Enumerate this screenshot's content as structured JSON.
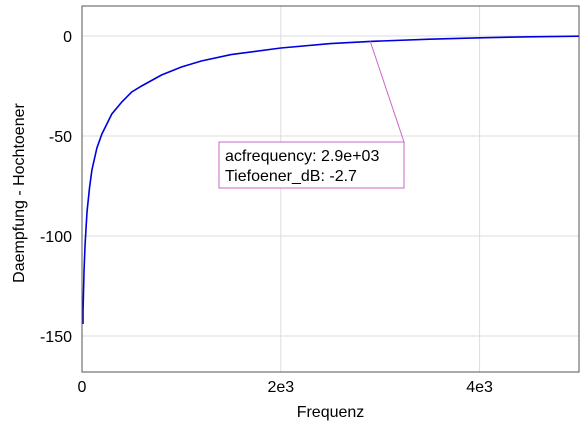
{
  "chart_data": {
    "type": "line",
    "title": "",
    "xlabel": "Frequenz",
    "ylabel": "Daempfung - Hochtoener",
    "xlim": [
      0,
      5000
    ],
    "ylim": [
      -168,
      15
    ],
    "grid": true,
    "x_ticks": [
      {
        "value": 0,
        "label": "0"
      },
      {
        "value": 2000,
        "label": "2e3"
      },
      {
        "value": 4000,
        "label": "4e3"
      }
    ],
    "y_ticks": [
      {
        "value": 0,
        "label": "0"
      },
      {
        "value": -50,
        "label": "-50"
      },
      {
        "value": -100,
        "label": "-100"
      },
      {
        "value": -150,
        "label": "-150"
      }
    ],
    "series": [
      {
        "color": "#0000dd",
        "x": [
          10,
          20,
          30,
          50,
          75,
          100,
          150,
          200,
          300,
          400,
          500,
          600,
          800,
          1000,
          1200,
          1500,
          2000,
          2500,
          2900,
          3500,
          4000,
          4500,
          5000
        ],
        "y": [
          -138,
          -118,
          -105,
          -88,
          -76,
          -67,
          -56,
          -49,
          -39,
          -33,
          -28,
          -25,
          -19.5,
          -15.5,
          -12.5,
          -9.3,
          -6,
          -3.8,
          -2.7,
          -1.6,
          -0.9,
          -0.4,
          -0.1
        ]
      }
    ],
    "annotations": [
      {
        "lines": [
          "acfrequency: 2.9e+03",
          "Tiefoener_dB: -2.7"
        ],
        "point_x": 2900,
        "point_y": -2.7,
        "color": "#cc66cc"
      }
    ]
  }
}
